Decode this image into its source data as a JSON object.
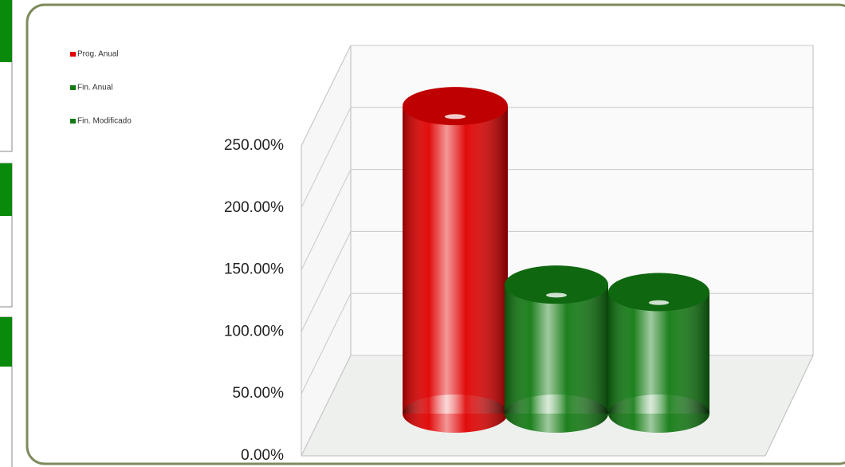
{
  "chart_data": {
    "type": "bar3d",
    "categories": [
      "Prog. Anual",
      "Fin. Anual",
      "Fin. Modificado"
    ],
    "values": [
      248,
      104,
      98
    ],
    "colors": [
      "#e00000",
      "#127a12",
      "#127a12"
    ],
    "ylim": [
      0,
      250
    ],
    "yticks": [
      {
        "value": 0,
        "label": "0.00%"
      },
      {
        "value": 50,
        "label": "50.00%"
      },
      {
        "value": 100,
        "label": "100.00%"
      },
      {
        "value": 150,
        "label": "150.00%"
      },
      {
        "value": 200,
        "label": "200.00%"
      },
      {
        "value": 250,
        "label": "250.00%"
      }
    ],
    "grid": true
  }
}
